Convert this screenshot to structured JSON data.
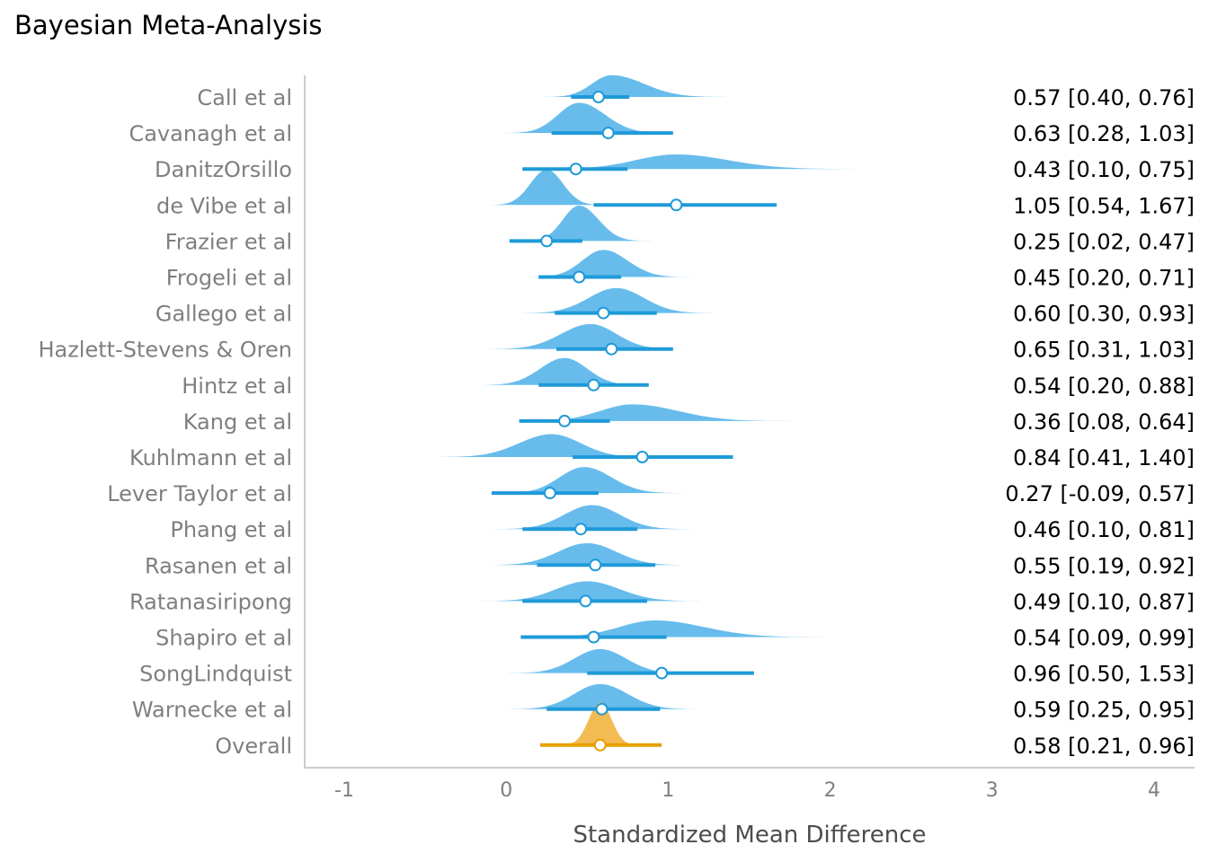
{
  "chart_data": {
    "type": "forest",
    "title": "Bayesian Meta-Analysis",
    "xlabel": "Standardized Mean Difference",
    "xlim": [
      -1.2,
      4.25
    ],
    "xticks": [
      -1,
      0,
      1,
      2,
      3,
      4
    ],
    "grid": false,
    "colors": {
      "study_density": "#5fb8eb",
      "study_interval": "#1e9ad8",
      "overall_density": "#f2b441",
      "overall_interval": "#e69f00",
      "axis": "#cccccc"
    },
    "rows": [
      {
        "label": "Call et al",
        "estimate": 0.57,
        "lower": 0.4,
        "upper": 0.76,
        "text": "0.57 [0.40, 0.76]",
        "density": {
          "mode": 0.65,
          "sd_left": 0.12,
          "sd_right": 0.2,
          "height": 0.42,
          "from": -0.1,
          "to": 1.35
        }
      },
      {
        "label": "Cavanagh et al",
        "estimate": 0.63,
        "lower": 0.28,
        "upper": 1.03,
        "text": "0.63 [0.28, 1.03]",
        "density": {
          "mode": 0.45,
          "sd_left": 0.13,
          "sd_right": 0.16,
          "height": 0.58,
          "from": -0.15,
          "to": 1.0
        }
      },
      {
        "label": "DanitzOrsillo",
        "estimate": 0.43,
        "lower": 0.1,
        "upper": 0.75,
        "text": "0.43 [0.10, 0.75]",
        "density": {
          "mode": 1.05,
          "sd_left": 0.25,
          "sd_right": 0.32,
          "height": 0.28,
          "from": 0.45,
          "to": 2.2
        }
      },
      {
        "label": "de Vibe et al",
        "estimate": 1.05,
        "lower": 0.54,
        "upper": 1.67,
        "text": "1.05 [0.54, 1.67]",
        "density": {
          "mode": 0.25,
          "sd_left": 0.1,
          "sd_right": 0.1,
          "height": 0.68,
          "from": -0.15,
          "to": 0.55
        }
      },
      {
        "label": "Frazier et al",
        "estimate": 0.25,
        "lower": 0.02,
        "upper": 0.47,
        "text": "0.25 [0.02, 0.47]",
        "density": {
          "mode": 0.45,
          "sd_left": 0.1,
          "sd_right": 0.12,
          "height": 0.68,
          "from": -0.05,
          "to": 0.95
        }
      },
      {
        "label": "Frogeli et al",
        "estimate": 0.45,
        "lower": 0.2,
        "upper": 0.71,
        "text": "0.45 [0.20, 0.71]",
        "density": {
          "mode": 0.6,
          "sd_left": 0.13,
          "sd_right": 0.15,
          "height": 0.52,
          "from": 0.05,
          "to": 1.15
        }
      },
      {
        "label": "Gallego et al",
        "estimate": 0.6,
        "lower": 0.3,
        "upper": 0.93,
        "text": "0.60 [0.30, 0.93]",
        "density": {
          "mode": 0.68,
          "sd_left": 0.17,
          "sd_right": 0.17,
          "height": 0.48,
          "from": 0.1,
          "to": 1.3
        }
      },
      {
        "label": "Hazlett-Stevens & Oren",
        "estimate": 0.65,
        "lower": 0.31,
        "upper": 1.03,
        "text": "0.65 [0.31, 1.03]",
        "density": {
          "mode": 0.52,
          "sd_left": 0.18,
          "sd_right": 0.16,
          "height": 0.48,
          "from": -0.1,
          "to": 1.2
        }
      },
      {
        "label": "Hintz et al",
        "estimate": 0.54,
        "lower": 0.2,
        "upper": 0.88,
        "text": "0.54 [0.20, 0.88]",
        "density": {
          "mode": 0.36,
          "sd_left": 0.15,
          "sd_right": 0.14,
          "height": 0.52,
          "from": -0.2,
          "to": 0.95
        }
      },
      {
        "label": "Kang et al",
        "estimate": 0.36,
        "lower": 0.08,
        "upper": 0.64,
        "text": "0.36 [0.08, 0.64]",
        "density": {
          "mode": 0.78,
          "sd_left": 0.2,
          "sd_right": 0.28,
          "height": 0.32,
          "from": 0.25,
          "to": 1.8
        }
      },
      {
        "label": "Kuhlmann et al",
        "estimate": 0.84,
        "lower": 0.41,
        "upper": 1.4,
        "text": "0.84 [0.41, 1.40]",
        "density": {
          "mode": 0.28,
          "sd_left": 0.2,
          "sd_right": 0.18,
          "height": 0.44,
          "from": -0.4,
          "to": 0.9
        }
      },
      {
        "label": "Lever Taylor et al",
        "estimate": 0.27,
        "lower": -0.09,
        "upper": 0.57,
        "text": "0.27 [-0.09, 0.57]",
        "density": {
          "mode": 0.48,
          "sd_left": 0.15,
          "sd_right": 0.17,
          "height": 0.5,
          "from": -0.25,
          "to": 1.1
        }
      },
      {
        "label": "Phang et al",
        "estimate": 0.46,
        "lower": 0.1,
        "upper": 0.81,
        "text": "0.46 [0.10, 0.81]",
        "density": {
          "mode": 0.53,
          "sd_left": 0.17,
          "sd_right": 0.17,
          "height": 0.46,
          "from": -0.1,
          "to": 1.25
        }
      },
      {
        "label": "Rasanen et al",
        "estimate": 0.55,
        "lower": 0.19,
        "upper": 0.92,
        "text": "0.55 [0.19, 0.92]",
        "density": {
          "mode": 0.5,
          "sd_left": 0.18,
          "sd_right": 0.18,
          "height": 0.42,
          "from": -0.25,
          "to": 1.2
        }
      },
      {
        "label": "Ratanasiripong",
        "estimate": 0.49,
        "lower": 0.1,
        "upper": 0.87,
        "text": "0.49 [0.10, 0.87]",
        "density": {
          "mode": 0.5,
          "sd_left": 0.19,
          "sd_right": 0.2,
          "height": 0.38,
          "from": -0.25,
          "to": 1.35
        }
      },
      {
        "label": "Shapiro et al",
        "estimate": 0.54,
        "lower": 0.09,
        "upper": 0.99,
        "text": "0.54 [0.09, 0.99]",
        "density": {
          "mode": 0.92,
          "sd_left": 0.22,
          "sd_right": 0.3,
          "height": 0.32,
          "from": 0.3,
          "to": 2.05
        }
      },
      {
        "label": "SongLindquist",
        "estimate": 0.96,
        "lower": 0.5,
        "upper": 1.53,
        "text": "0.96 [0.50, 1.53]",
        "density": {
          "mode": 0.58,
          "sd_left": 0.16,
          "sd_right": 0.16,
          "height": 0.46,
          "from": -0.05,
          "to": 1.25
        }
      },
      {
        "label": "Warnecke et al",
        "estimate": 0.59,
        "lower": 0.25,
        "upper": 0.95,
        "text": "0.59 [0.25, 0.95]",
        "density": {
          "mode": 0.58,
          "sd_left": 0.16,
          "sd_right": 0.17,
          "height": 0.48,
          "from": -0.1,
          "to": 1.35
        }
      },
      {
        "label": "Overall",
        "estimate": 0.58,
        "lower": 0.21,
        "upper": 0.96,
        "text": "0.58 [0.21, 0.96]",
        "overall": true,
        "density": {
          "mode": 0.58,
          "sd_left": 0.07,
          "sd_right": 0.07,
          "height": 0.82,
          "from": 0.3,
          "to": 0.85
        }
      }
    ]
  }
}
